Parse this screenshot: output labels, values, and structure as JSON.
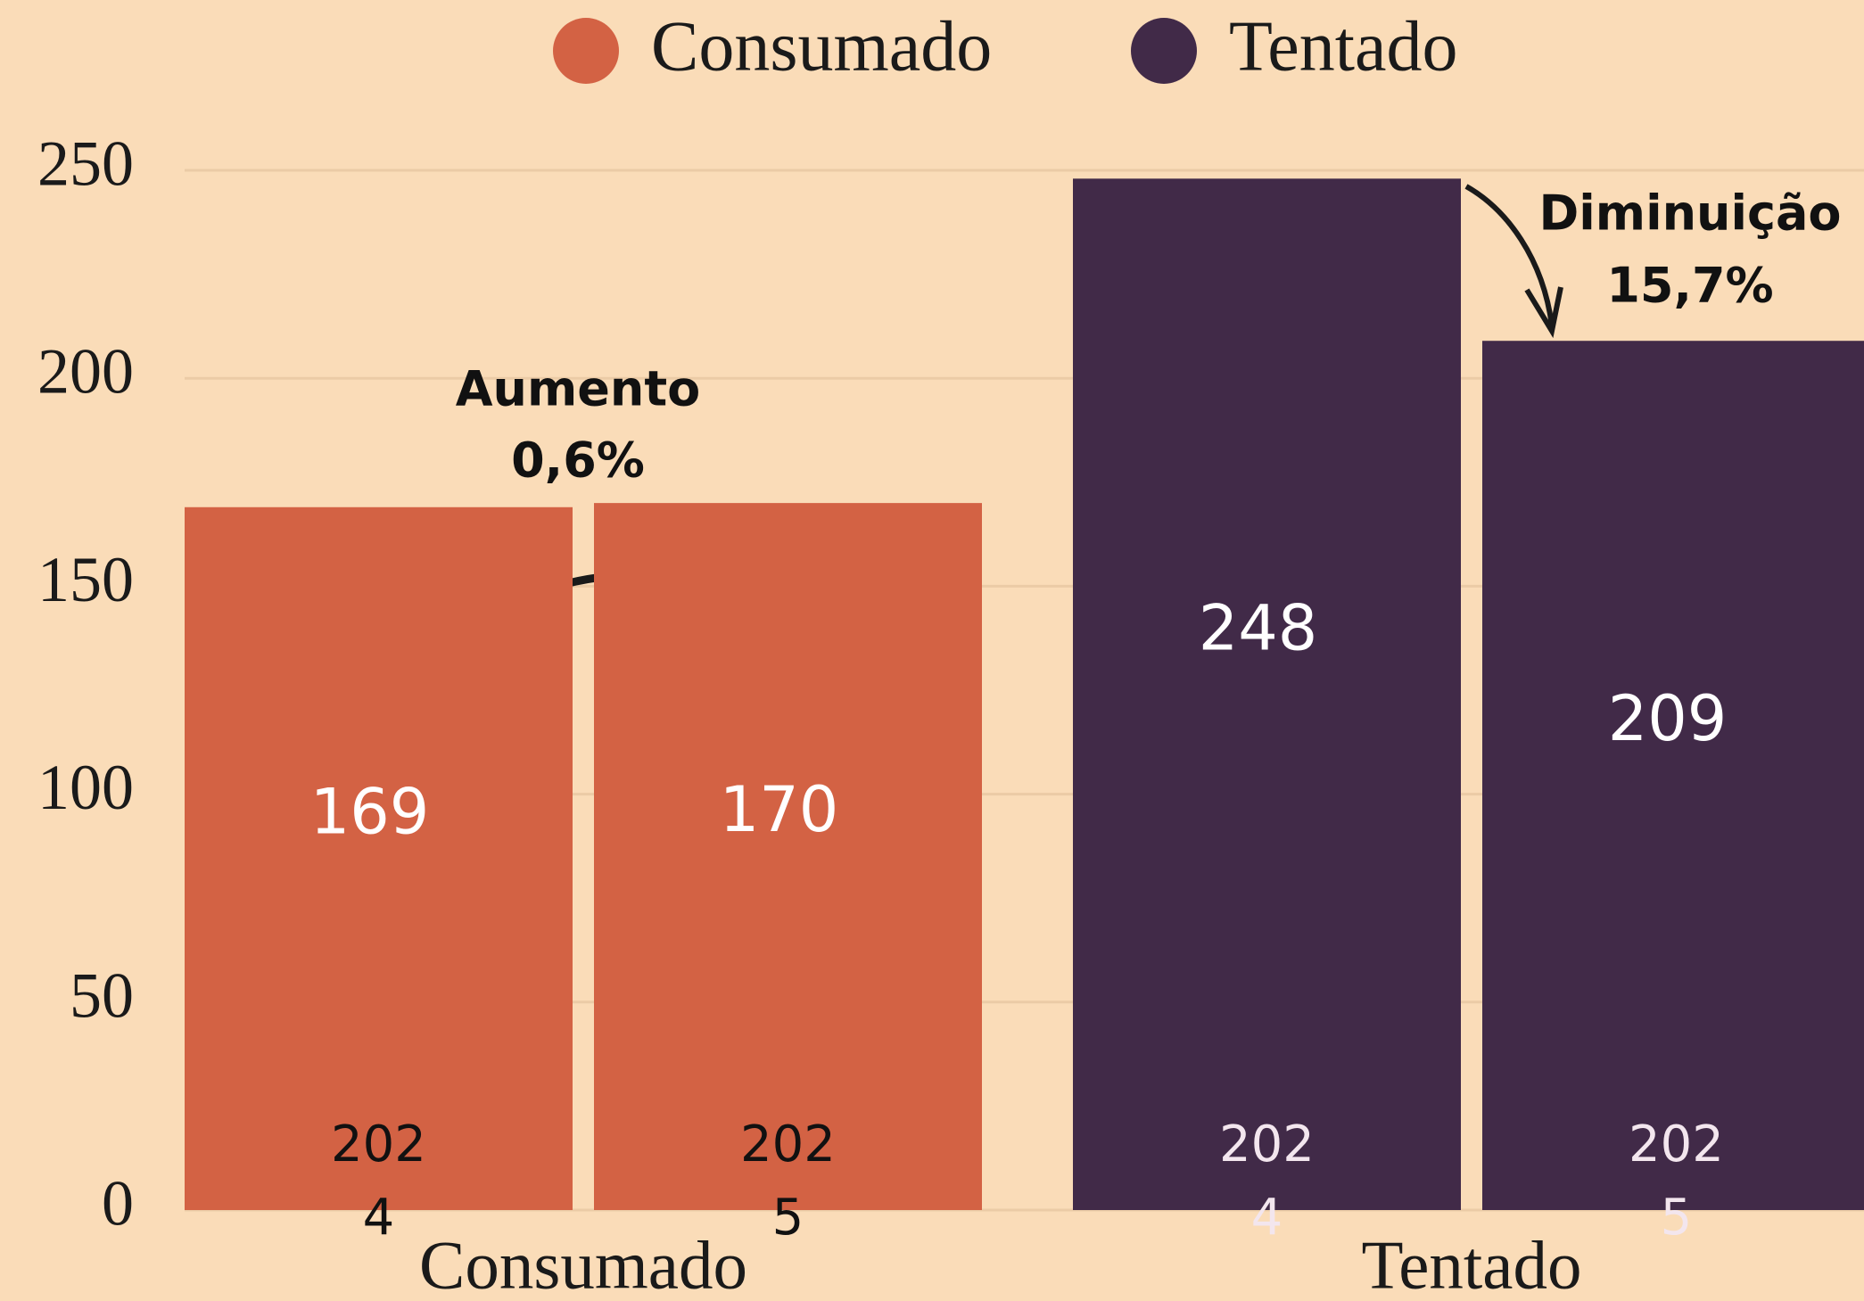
{
  "chart_data": {
    "type": "bar",
    "categories": [
      "Consumado",
      "Tentado"
    ],
    "years": [
      "2024",
      "2025"
    ],
    "series": [
      {
        "name": "Consumado",
        "color": "#d36244",
        "year_label_color": "#111111",
        "values": [
          169,
          170
        ]
      },
      {
        "name": "Tentado",
        "color": "#412a48",
        "year_label_color": "#f3e6ee",
        "values": [
          248,
          209
        ]
      }
    ],
    "ylim": [
      0,
      250
    ],
    "yticks": [
      0,
      50,
      100,
      150,
      200,
      250
    ],
    "grid": true,
    "annotations": [
      {
        "lines": [
          "Aumento",
          "0,6%"
        ]
      },
      {
        "lines": [
          "Diminuição",
          "15,7%"
        ]
      }
    ]
  }
}
